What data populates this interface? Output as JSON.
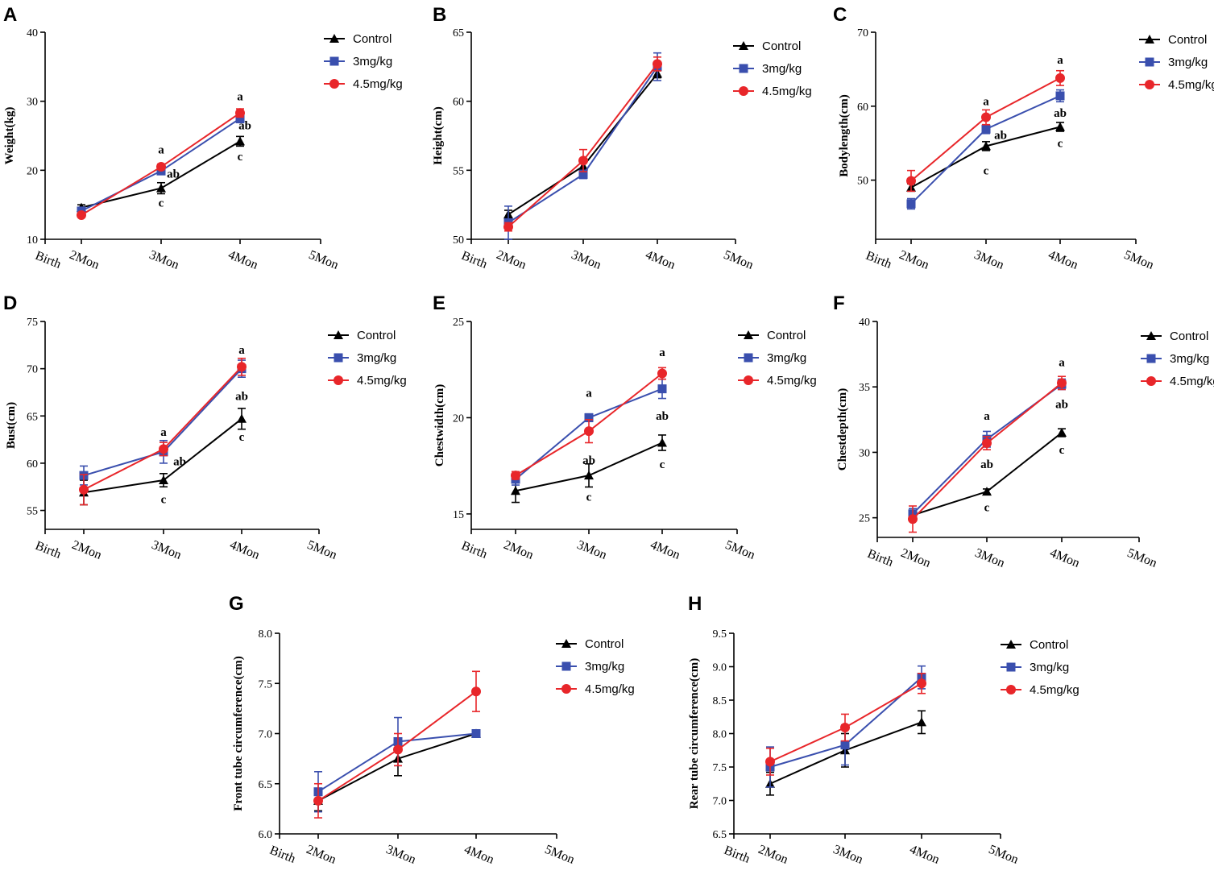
{
  "chart_data": [
    {
      "panel": "A",
      "type": "line",
      "ylabel": "Weight(kg)",
      "xcategories": [
        "Birth",
        "2Mon",
        "3Mon",
        "4Mon",
        "5Mon"
      ],
      "yticks": [
        "10",
        "20",
        "30",
        "40"
      ],
      "ylim": [
        10,
        40
      ],
      "legend": [
        "Control",
        "3mg/kg",
        "4.5mg/kg"
      ],
      "series": [
        {
          "name": "Control",
          "color": "#000000",
          "marker": "triangle",
          "values": [
            14.6,
            17.4,
            24.2
          ],
          "errors": [
            0.4,
            0.8,
            0.7
          ]
        },
        {
          "name": "3mg/kg",
          "color": "#3a4fae",
          "marker": "square",
          "values": [
            14.1,
            19.9,
            27.5
          ],
          "errors": [
            0.4,
            0.5,
            0.6
          ]
        },
        {
          "name": "4.5mg/kg",
          "color": "#e8262a",
          "marker": "circle",
          "values": [
            13.5,
            20.5,
            28.3
          ],
          "errors": [
            0.3,
            0.4,
            0.6
          ]
        }
      ],
      "annotations": [
        {
          "text": "a",
          "cat": "3Mon",
          "y": 23.0
        },
        {
          "text": "ab",
          "cat": "3Mon",
          "y": 19.5,
          "dx": 15
        },
        {
          "text": "c",
          "cat": "3Mon",
          "y": 15.3
        },
        {
          "text": "a",
          "cat": "4Mon",
          "y": 30.7
        },
        {
          "text": "ab",
          "cat": "4Mon",
          "y": 26.5,
          "dx": 6
        },
        {
          "text": "c",
          "cat": "4Mon",
          "y": 22.0
        }
      ]
    },
    {
      "panel": "B",
      "type": "line",
      "ylabel": "Height(cm)",
      "xcategories": [
        "Birth",
        "2Mon",
        "3Mon",
        "4Mon",
        "5Mon"
      ],
      "yticks": [
        "50",
        "55",
        "60",
        "65"
      ],
      "ylim": [
        50,
        65
      ],
      "legend": [
        "Control",
        "3mg/kg",
        "4.5mg/kg"
      ],
      "series": [
        {
          "name": "Control",
          "color": "#000000",
          "marker": "triangle",
          "values": [
            51.8,
            55.3,
            62.0
          ],
          "errors": [
            0.3,
            0.3,
            0.3
          ]
        },
        {
          "name": "3mg/kg",
          "color": "#3a4fae",
          "marker": "square",
          "values": [
            51.2,
            54.7,
            62.5
          ],
          "errors": [
            1.2,
            0.3,
            1.0
          ]
        },
        {
          "name": "4.5mg/kg",
          "color": "#e8262a",
          "marker": "circle",
          "values": [
            50.9,
            55.7,
            62.7
          ],
          "errors": [
            0.3,
            0.8,
            0.5
          ]
        }
      ],
      "annotations": []
    },
    {
      "panel": "C",
      "type": "line",
      "ylabel": "Bodylength(cm)",
      "xcategories": [
        "Birth",
        "2Mon",
        "3Mon",
        "4Mon",
        "5Mon"
      ],
      "yticks": [
        "50",
        "60",
        "70"
      ],
      "ylim": [
        42,
        70
      ],
      "legend": [
        "Control",
        "3mg/kg",
        "4.5mg/kg"
      ],
      "series": [
        {
          "name": "Control",
          "color": "#000000",
          "marker": "triangle",
          "values": [
            49.0,
            54.6,
            57.2
          ],
          "errors": [
            0.5,
            0.6,
            0.6
          ]
        },
        {
          "name": "3mg/kg",
          "color": "#3a4fae",
          "marker": "square",
          "values": [
            46.8,
            56.9,
            61.4
          ],
          "errors": [
            0.7,
            0.6,
            0.8
          ]
        },
        {
          "name": "4.5mg/kg",
          "color": "#e8262a",
          "marker": "circle",
          "values": [
            49.9,
            58.5,
            63.8
          ],
          "errors": [
            1.4,
            1.0,
            1.0
          ]
        }
      ],
      "annotations": [
        {
          "text": "a",
          "cat": "3Mon",
          "y": 60.7
        },
        {
          "text": "ab",
          "cat": "3Mon",
          "y": 56.1,
          "dx": 18
        },
        {
          "text": "c",
          "cat": "3Mon",
          "y": 51.3
        },
        {
          "text": "a",
          "cat": "4Mon",
          "y": 66.3
        },
        {
          "text": "ab",
          "cat": "4Mon",
          "y": 59.1
        },
        {
          "text": "c",
          "cat": "4Mon",
          "y": 55.0
        }
      ]
    },
    {
      "panel": "D",
      "type": "line",
      "ylabel": "Bust(cm)",
      "xcategories": [
        "Birth",
        "2Mon",
        "3Mon",
        "4Mon",
        "5Mon"
      ],
      "yticks": [
        "55",
        "60",
        "65",
        "70",
        "75"
      ],
      "ylim": [
        53,
        75
      ],
      "legend": [
        "Control",
        "3mg/kg",
        "4.5mg/kg"
      ],
      "series": [
        {
          "name": "Control",
          "color": "#000000",
          "marker": "triangle",
          "values": [
            56.9,
            58.2,
            64.7
          ],
          "errors": [
            1.3,
            0.7,
            1.1
          ]
        },
        {
          "name": "3mg/kg",
          "color": "#3a4fae",
          "marker": "square",
          "values": [
            58.7,
            61.2,
            70.0
          ],
          "errors": [
            1.0,
            1.2,
            0.9
          ]
        },
        {
          "name": "4.5mg/kg",
          "color": "#e8262a",
          "marker": "circle",
          "values": [
            57.2,
            61.5,
            70.2
          ],
          "errors": [
            1.6,
            0.7,
            0.9
          ]
        }
      ],
      "annotations": [
        {
          "text": "a",
          "cat": "3Mon",
          "y": 63.3
        },
        {
          "text": "ab",
          "cat": "3Mon",
          "y": 60.2,
          "dx": 20
        },
        {
          "text": "c",
          "cat": "3Mon",
          "y": 56.2
        },
        {
          "text": "a",
          "cat": "4Mon",
          "y": 72.0
        },
        {
          "text": "ab",
          "cat": "4Mon",
          "y": 67.1
        },
        {
          "text": "c",
          "cat": "4Mon",
          "y": 62.8
        }
      ]
    },
    {
      "panel": "E",
      "type": "line",
      "ylabel": "Chestwidth(cm)",
      "xcategories": [
        "Birth",
        "2Mon",
        "3Mon",
        "4Mon",
        "5Mon"
      ],
      "yticks": [
        "15",
        "20",
        "25"
      ],
      "ylim": [
        14.2,
        25
      ],
      "legend": [
        "Control",
        "3mg/kg",
        "4.5mg/kg"
      ],
      "series": [
        {
          "name": "Control",
          "color": "#000000",
          "marker": "triangle",
          "values": [
            16.2,
            17.0,
            18.7
          ],
          "errors": [
            0.6,
            0.6,
            0.4
          ]
        },
        {
          "name": "3mg/kg",
          "color": "#3a4fae",
          "marker": "square",
          "values": [
            16.8,
            20.0,
            21.5
          ],
          "errors": [
            0.3,
            0.2,
            0.5
          ]
        },
        {
          "name": "4.5mg/kg",
          "color": "#e8262a",
          "marker": "circle",
          "values": [
            17.0,
            19.3,
            22.3
          ],
          "errors": [
            0.2,
            0.6,
            0.3
          ]
        }
      ],
      "annotations": [
        {
          "text": "a",
          "cat": "3Mon",
          "y": 21.3
        },
        {
          "text": "ab",
          "cat": "3Mon",
          "y": 17.8
        },
        {
          "text": "c",
          "cat": "3Mon",
          "y": 15.9
        },
        {
          "text": "a",
          "cat": "4Mon",
          "y": 23.4
        },
        {
          "text": "ab",
          "cat": "4Mon",
          "y": 20.1
        },
        {
          "text": "c",
          "cat": "4Mon",
          "y": 17.6
        }
      ]
    },
    {
      "panel": "F",
      "type": "line",
      "ylabel": "Chestdepth(cm)",
      "xcategories": [
        "Birth",
        "2Mon",
        "3Mon",
        "4Mon",
        "5Mon"
      ],
      "yticks": [
        "25",
        "30",
        "35",
        "40"
      ],
      "ylim": [
        23.5,
        40
      ],
      "legend": [
        "Control",
        "3mg/kg",
        "4.5mg/kg"
      ],
      "series": [
        {
          "name": "Control",
          "color": "#000000",
          "marker": "triangle",
          "values": [
            25.2,
            27.0,
            31.5
          ],
          "errors": [
            0.3,
            0.2,
            0.3
          ]
        },
        {
          "name": "3mg/kg",
          "color": "#3a4fae",
          "marker": "square",
          "values": [
            25.3,
            31.0,
            35.2
          ],
          "errors": [
            0.4,
            0.6,
            0.4
          ]
        },
        {
          "name": "4.5mg/kg",
          "color": "#e8262a",
          "marker": "circle",
          "values": [
            24.9,
            30.7,
            35.3
          ],
          "errors": [
            1.0,
            0.5,
            0.5
          ]
        }
      ],
      "annotations": [
        {
          "text": "a",
          "cat": "3Mon",
          "y": 32.8
        },
        {
          "text": "ab",
          "cat": "3Mon",
          "y": 29.1
        },
        {
          "text": "c",
          "cat": "3Mon",
          "y": 25.8
        },
        {
          "text": "a",
          "cat": "4Mon",
          "y": 36.9
        },
        {
          "text": "ab",
          "cat": "4Mon",
          "y": 33.7
        },
        {
          "text": "c",
          "cat": "4Mon",
          "y": 30.2
        }
      ]
    },
    {
      "panel": "G",
      "type": "line",
      "ylabel": "Front tube circumference(cm)",
      "xcategories": [
        "Birth",
        "2Mon",
        "3Mon",
        "4Mon",
        "5Mon"
      ],
      "yticks": [
        "6.0",
        "6.5",
        "7.0",
        "7.5",
        "8.0"
      ],
      "ylim": [
        6.0,
        8.0
      ],
      "legend": [
        "Control",
        "3mg/kg",
        "4.5mg/kg"
      ],
      "series": [
        {
          "name": "Control",
          "color": "#000000",
          "marker": "triangle",
          "values": [
            6.33,
            6.75,
            7.0
          ],
          "errors": [
            0.1,
            0.17,
            0.0
          ]
        },
        {
          "name": "3mg/kg",
          "color": "#3a4fae",
          "marker": "square",
          "values": [
            6.42,
            6.92,
            7.0
          ],
          "errors": [
            0.2,
            0.24,
            0.0
          ]
        },
        {
          "name": "4.5mg/kg",
          "color": "#e8262a",
          "marker": "circle",
          "values": [
            6.33,
            6.84,
            7.42
          ],
          "errors": [
            0.17,
            0.16,
            0.2
          ]
        }
      ],
      "annotations": []
    },
    {
      "panel": "H",
      "type": "line",
      "ylabel": "Rear tube circumference(cm)",
      "xcategories": [
        "Birth",
        "2Mon",
        "3Mon",
        "4Mon",
        "5Mon"
      ],
      "yticks": [
        "6.5",
        "7.0",
        "7.5",
        "8.0",
        "8.5",
        "9.0",
        "9.5"
      ],
      "ylim": [
        6.5,
        9.5
      ],
      "legend": [
        "Control",
        "3mg/kg",
        "4.5mg/kg"
      ],
      "series": [
        {
          "name": "Control",
          "color": "#000000",
          "marker": "triangle",
          "values": [
            7.25,
            7.75,
            8.17
          ],
          "errors": [
            0.17,
            0.25,
            0.17
          ]
        },
        {
          "name": "3mg/kg",
          "color": "#3a4fae",
          "marker": "square",
          "values": [
            7.5,
            7.83,
            8.84
          ],
          "errors": [
            0.3,
            0.3,
            0.17
          ]
        },
        {
          "name": "4.5mg/kg",
          "color": "#e8262a",
          "marker": "circle",
          "values": [
            7.58,
            8.09,
            8.75
          ],
          "errors": [
            0.2,
            0.2,
            0.15
          ]
        }
      ],
      "annotations": []
    }
  ]
}
